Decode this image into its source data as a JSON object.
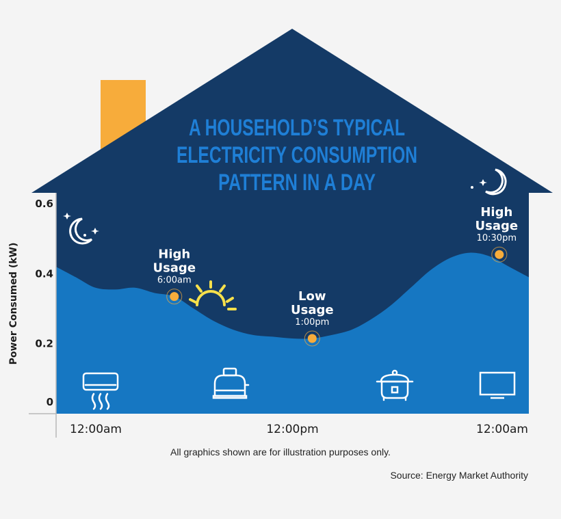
{
  "colors": {
    "house_dark": "#143a66",
    "usage_area": "#1677c2",
    "chimney": "#f7ac3b",
    "marker": "#f7ac3b",
    "sun": "#f6e04b",
    "title": "#1f7fd6",
    "background": "#f4f4f4"
  },
  "chart_data": {
    "type": "area",
    "title_lines": [
      "A HOUSEHOLD’S TYPICAL",
      "ELECTRICITY CONSUMPTION",
      "PATTERN IN A DAY"
    ],
    "ylabel": "Power Consumed (kW)",
    "xlabel": "",
    "ylim": [
      0,
      0.65
    ],
    "y_ticks": [
      {
        "value": 0,
        "label": "0"
      },
      {
        "value": 0.2,
        "label": "0.2"
      },
      {
        "value": 0.4,
        "label": "0.4"
      },
      {
        "value": 0.6,
        "label": "0.6"
      }
    ],
    "xlim": [
      0,
      24
    ],
    "x_ticks": [
      {
        "value": 0,
        "label": "12:00am"
      },
      {
        "value": 12,
        "label": "12:00pm"
      },
      {
        "value": 24,
        "label": "12:00am"
      }
    ],
    "x_hours": [
      0,
      1,
      2,
      3,
      4,
      5,
      6,
      7,
      8,
      9,
      10,
      11,
      12,
      13,
      14,
      15,
      16,
      17,
      18,
      19,
      20,
      21,
      22,
      23,
      24
    ],
    "values": [
      0.42,
      0.39,
      0.36,
      0.355,
      0.36,
      0.345,
      0.335,
      0.3,
      0.265,
      0.24,
      0.225,
      0.22,
      0.215,
      0.215,
      0.225,
      0.24,
      0.27,
      0.31,
      0.36,
      0.41,
      0.445,
      0.46,
      0.45,
      0.42,
      0.39
    ],
    "grid": false,
    "annotations": [
      {
        "x": 6.0,
        "y": 0.335,
        "label": "High",
        "label2": "Usage",
        "time": "6:00am"
      },
      {
        "x": 13.0,
        "y": 0.215,
        "label": "Low",
        "label2": "Usage",
        "time": "1:00pm"
      },
      {
        "x": 22.5,
        "y": 0.455,
        "label": "High",
        "label2": "Usage",
        "time": "10:30pm"
      }
    ],
    "icons": [
      "moon-icon",
      "sun-icon",
      "moon-icon",
      "air-conditioner-icon",
      "toaster-icon",
      "rice-cooker-icon",
      "television-icon"
    ]
  },
  "footer": {
    "note": "All graphics shown are for illustration purposes only.",
    "source": "Source: Energy Market Authority"
  }
}
